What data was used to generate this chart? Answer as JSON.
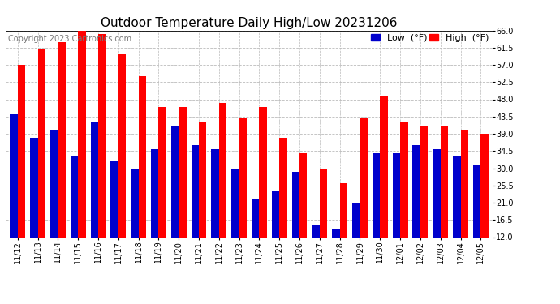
{
  "title": "Outdoor Temperature Daily High/Low 20231206",
  "copyright": "Copyright 2023 Cartronics.com",
  "legend_low": "Low  (°F)",
  "legend_high": "High  (°F)",
  "dates": [
    "11/12",
    "11/13",
    "11/14",
    "11/15",
    "11/16",
    "11/17",
    "11/18",
    "11/19",
    "11/20",
    "11/21",
    "11/22",
    "11/23",
    "11/24",
    "11/25",
    "11/26",
    "11/27",
    "11/28",
    "11/29",
    "11/30",
    "12/01",
    "12/02",
    "12/03",
    "12/04",
    "12/05"
  ],
  "highs": [
    57,
    61,
    63,
    66,
    65,
    60,
    54,
    46,
    46,
    42,
    47,
    43,
    46,
    38,
    34,
    30,
    26,
    43,
    49,
    42,
    41,
    41,
    40,
    39
  ],
  "lows": [
    44,
    38,
    40,
    33,
    42,
    32,
    30,
    35,
    41,
    36,
    35,
    30,
    22,
    24,
    29,
    15,
    14,
    21,
    34,
    34,
    36,
    35,
    33,
    31
  ],
  "high_color": "#ff0000",
  "low_color": "#0000cc",
  "ylim_min": 12.0,
  "ylim_max": 66.0,
  "yticks": [
    12.0,
    16.5,
    21.0,
    25.5,
    30.0,
    34.5,
    39.0,
    43.5,
    48.0,
    52.5,
    57.0,
    61.5,
    66.0
  ],
  "bg_color": "#ffffff",
  "plot_bg_color": "#ffffff",
  "grid_color": "#bbbbbb",
  "bar_width": 0.38,
  "title_fontsize": 11,
  "tick_fontsize": 7,
  "copyright_fontsize": 7,
  "legend_fontsize": 8
}
